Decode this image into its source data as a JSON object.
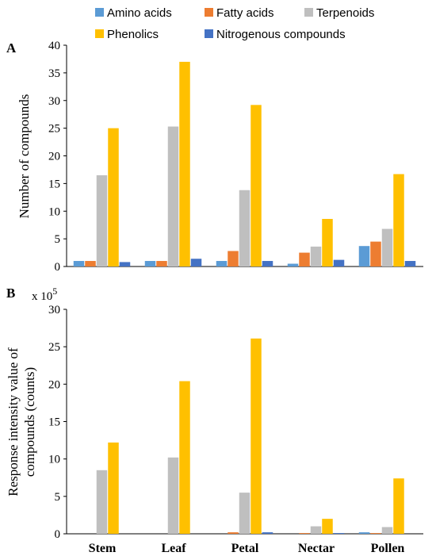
{
  "legend": [
    {
      "label": "Amino acids",
      "color": "#5b9bd5"
    },
    {
      "label": "Fatty acids",
      "color": "#ed7d31"
    },
    {
      "label": "Terpenoids",
      "color": "#bfbfbf"
    },
    {
      "label": "Phenolics",
      "color": "#ffc000"
    },
    {
      "label": "Nitrogenous compounds",
      "color": "#4472c4"
    }
  ],
  "chart_data": [
    {
      "type": "bar",
      "panel": "A",
      "ylabel": "Number of compounds",
      "ylim": [
        0,
        40
      ],
      "yticks": [
        0,
        5,
        10,
        15,
        20,
        25,
        30,
        35,
        40
      ],
      "categories": [
        "Stem",
        "Leaf",
        "Petal",
        "Nectar",
        "Pollen"
      ],
      "series": [
        {
          "name": "Amino acids",
          "values": [
            1,
            1,
            1,
            0.5,
            3.7
          ]
        },
        {
          "name": "Fatty acids",
          "values": [
            1,
            1,
            2.8,
            2.5,
            4.5
          ]
        },
        {
          "name": "Terpenoids",
          "values": [
            16.5,
            25.3,
            13.8,
            3.6,
            6.8
          ]
        },
        {
          "name": "Phenolics",
          "values": [
            25,
            37,
            29.2,
            8.6,
            16.7
          ]
        },
        {
          "name": "Nitrogenous compounds",
          "values": [
            0.8,
            1.4,
            1,
            1.2,
            1
          ]
        }
      ]
    },
    {
      "type": "bar",
      "panel": "B",
      "ylabel": "Response intensity value of compounds (counts)",
      "ylabel_line1": "Response intensity value of",
      "ylabel_line2": "compounds (counts)",
      "multiplier_base": "x 10",
      "multiplier_exp": "5",
      "ylim": [
        0,
        30
      ],
      "yticks": [
        0,
        5,
        10,
        15,
        20,
        25,
        30
      ],
      "categories": [
        "Stem",
        "Leaf",
        "Petal",
        "Nectar",
        "Pollen"
      ],
      "series": [
        {
          "name": "Amino acids",
          "values": [
            0,
            0,
            0,
            0,
            0.2
          ]
        },
        {
          "name": "Fatty acids",
          "values": [
            0,
            0,
            0.2,
            0.1,
            0.1
          ]
        },
        {
          "name": "Terpenoids",
          "values": [
            8.5,
            10.2,
            5.5,
            1,
            0.9
          ]
        },
        {
          "name": "Phenolics",
          "values": [
            12.2,
            20.4,
            26.1,
            2,
            7.4
          ]
        },
        {
          "name": "Nitrogenous compounds",
          "values": [
            0,
            0,
            0.2,
            0.1,
            0
          ]
        }
      ]
    }
  ]
}
